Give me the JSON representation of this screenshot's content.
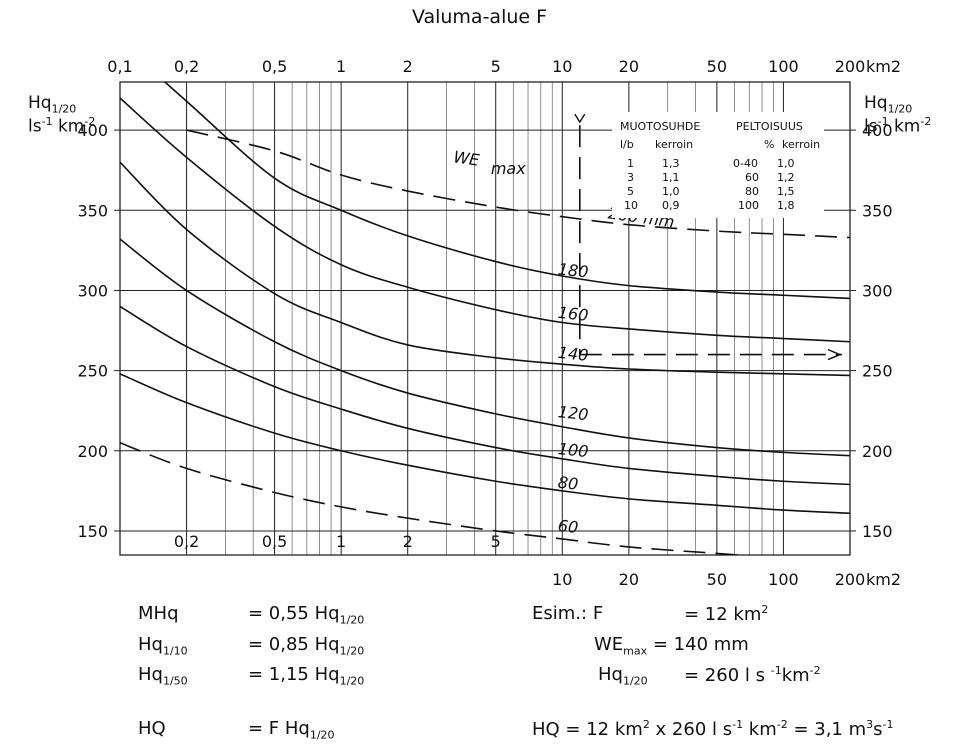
{
  "title": "Valuma-alue F",
  "chart_data": {
    "type": "line",
    "title": "Valuma-alue F",
    "x_scale": "log",
    "x_unit": "km2",
    "xlim": [
      0.1,
      200
    ],
    "ylim": [
      150,
      400
    ],
    "ylabel_left": [
      "Hq",
      "1/20",
      "ls",
      "-1",
      " km",
      "-2"
    ],
    "ylabel_right": [
      "Hq",
      "1/20",
      "ls",
      "-1",
      " km",
      "-2"
    ],
    "yticks": [
      150,
      200,
      250,
      300,
      350,
      400
    ],
    "x_top_ticks": [
      "0,1",
      "0,2",
      "0,5",
      "1",
      "2",
      "5",
      "10",
      "20",
      "50",
      "100",
      "200"
    ],
    "x_top_values": [
      0.1,
      0.2,
      0.5,
      1,
      2,
      5,
      10,
      20,
      50,
      100,
      200
    ],
    "x_bottom_ticks": [
      "0,2",
      "0,5",
      "1",
      "2",
      "5",
      "10",
      "20",
      "50",
      "100",
      "200"
    ],
    "x_bottom_values": [
      0.2,
      0.5,
      1,
      2,
      5,
      10,
      20,
      50,
      100,
      200
    ],
    "x_top_unit": "km2",
    "x_bottom_unit": "km2",
    "series": [
      {
        "name": "60",
        "dashed": true,
        "x": [
          0.1,
          0.2,
          0.5,
          1,
          2,
          5,
          10,
          20,
          50,
          100,
          200
        ],
        "y": [
          205,
          189,
          174,
          165,
          158,
          150,
          145,
          140,
          136,
          133,
          131
        ]
      },
      {
        "name": "80",
        "x": [
          0.1,
          0.2,
          0.5,
          1,
          2,
          5,
          10,
          20,
          50,
          100,
          200
        ],
        "y": [
          248,
          230,
          211,
          200,
          191,
          181,
          175,
          170,
          166,
          163,
          161
        ]
      },
      {
        "name": "100",
        "x": [
          0.1,
          0.2,
          0.5,
          1,
          2,
          5,
          10,
          20,
          50,
          100,
          200
        ],
        "y": [
          290,
          265,
          240,
          226,
          214,
          202,
          195,
          189,
          184,
          181,
          179
        ]
      },
      {
        "name": "120",
        "x": [
          0.1,
          0.2,
          0.5,
          1,
          2,
          5,
          10,
          20,
          50,
          100,
          200
        ],
        "y": [
          332,
          300,
          268,
          250,
          236,
          223,
          215,
          208,
          202,
          199,
          197
        ]
      },
      {
        "name": "140",
        "x": [
          0.1,
          0.2,
          0.5,
          1,
          2,
          5,
          10,
          20,
          50,
          100,
          200
        ],
        "y": [
          380,
          338,
          298,
          280,
          266,
          258,
          254,
          251,
          249,
          248,
          247
        ]
      },
      {
        "name": "160",
        "x": [
          0.1,
          0.2,
          0.5,
          1,
          2,
          5,
          10,
          20,
          50,
          100,
          200
        ],
        "y": [
          420,
          383,
          340,
          316,
          302,
          288,
          280,
          276,
          272,
          270,
          268
        ]
      },
      {
        "name": "180",
        "x": [
          0.1,
          0.2,
          0.5,
          1,
          2,
          5,
          10,
          20,
          50,
          100,
          200
        ],
        "y": [
          455,
          418,
          370,
          350,
          334,
          318,
          309,
          303,
          299,
          297,
          295
        ]
      },
      {
        "name": "200 mm",
        "dashed": true,
        "x": [
          0.2,
          0.5,
          1,
          2,
          5,
          10,
          20,
          50,
          100,
          200
        ],
        "y": [
          400,
          387,
          372,
          362,
          352,
          346,
          341,
          337,
          335,
          333
        ]
      }
    ],
    "curve_labels": [
      {
        "text": "200 mm",
        "x": 16,
        "y": 345
      },
      {
        "text": "180",
        "x": 9.5,
        "y": 310
      },
      {
        "text": "160",
        "x": 9.5,
        "y": 283
      },
      {
        "text": "140",
        "x": 9.5,
        "y": 258
      },
      {
        "text": "120",
        "x": 9.5,
        "y": 221
      },
      {
        "text": "100",
        "x": 9.5,
        "y": 198
      },
      {
        "text": "80",
        "x": 9.5,
        "y": 177
      },
      {
        "text": "60",
        "x": 9.5,
        "y": 150
      }
    ],
    "we_label": {
      "main": "WE",
      "sub": "max",
      "x": 3.2,
      "y": 380
    },
    "example_path": {
      "x": 12,
      "y_top": 400,
      "y": 260,
      "x_end": 200
    }
  },
  "table": {
    "left_header": "MUOTOSUHDE",
    "left_cols": [
      "l/b",
      "kerroin"
    ],
    "left_rows": [
      [
        "1",
        "1,3"
      ],
      [
        "3",
        "1,1"
      ],
      [
        "5",
        "1,0"
      ],
      [
        "10",
        "0,9"
      ]
    ],
    "right_header": "PELTOISUUS",
    "right_cols": [
      "%",
      "kerroin"
    ],
    "right_rows": [
      [
        "0-40",
        "1,0"
      ],
      [
        "60",
        "1,2"
      ],
      [
        "80",
        "1,5"
      ],
      [
        "100",
        "1,8"
      ]
    ]
  },
  "formulas": {
    "mhq_left": "MHq",
    "mhq_eq": "= 0,55 Hq",
    "mhq_sub": "1/20",
    "hq10_left": "Hq",
    "hq10_sub": "1/10",
    "hq10_eq": "= 0,85 Hq",
    "hq10_eq_sub": "1/20",
    "hq50_left": "Hq",
    "hq50_sub": "1/50",
    "hq50_eq": "= 1,15 Hq",
    "hq50_eq_sub": "1/20",
    "hq_left": "HQ",
    "hq_eq": "= F Hq",
    "hq_eq_sub": "1/20",
    "esim_label": "Esim.:",
    "esim_f": "F",
    "esim_f_eq": "= 12 km",
    "esim_f_sup": "2",
    "esim_we": "WE",
    "esim_we_sub": "max",
    "esim_we_eq": "= 140 mm",
    "esim_hq": "Hq",
    "esim_hq_sub": "1/20",
    "esim_hq_eq": "= 260 l s ",
    "esim_hq_sup1": "-1",
    "esim_hq_km": "km",
    "esim_hq_sup2": "-2",
    "hq_example": "HQ = 12 km",
    "hq_ex_sup1": "2",
    "hq_ex_mid": " x 260 l s",
    "hq_ex_sup2": "-1",
    "hq_ex_km": " km",
    "hq_ex_sup3": "-2",
    "hq_ex_res": " = 3,1 m",
    "hq_ex_sup4": "3",
    "hq_ex_s": "s",
    "hq_ex_sup5": "-1"
  }
}
